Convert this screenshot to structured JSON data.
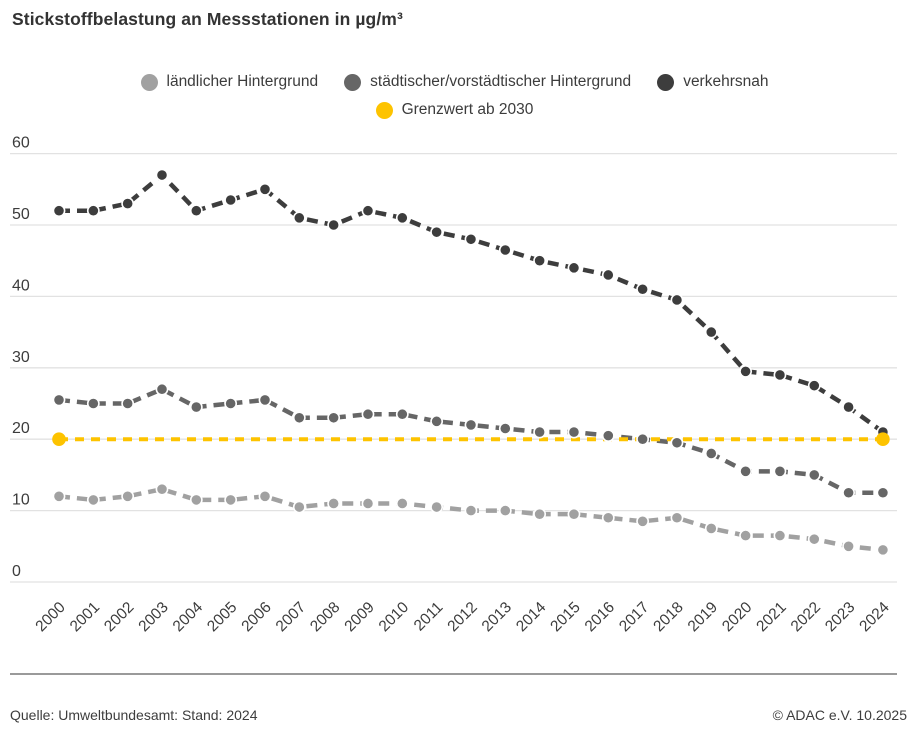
{
  "title": "Stickstoffbelastung an Messstationen in µg/m³",
  "legend": [
    {
      "label": "ländlicher Hintergrund",
      "color": "#a1a1a1"
    },
    {
      "label": "städtischer/vorstädtischer Hintergrund",
      "color": "#666666"
    },
    {
      "label": "verkehrsnah",
      "color": "#3d3d3d"
    },
    {
      "label": "Grenzwert ab 2030",
      "color": "#fdc300"
    }
  ],
  "chart_data": {
    "type": "line",
    "title": "Stickstoffbelastung an Messstationen in µg/m³",
    "categories": [
      "2000",
      "2001",
      "2002",
      "2003",
      "2004",
      "2005",
      "2006",
      "2007",
      "2008",
      "2009",
      "2010",
      "2011",
      "2012",
      "2013",
      "2014",
      "2015",
      "2016",
      "2017",
      "2018",
      "2019",
      "2020",
      "2021",
      "2022",
      "2023",
      "2024"
    ],
    "series": [
      {
        "name": "ländlicher Hintergrund",
        "color": "#a1a1a1",
        "values": [
          12,
          11.5,
          12,
          13,
          11.5,
          11.5,
          12,
          10.5,
          11,
          11,
          11,
          10.5,
          10,
          10,
          9.5,
          9.5,
          9,
          8.5,
          9,
          7.5,
          6.5,
          6.5,
          6,
          5,
          4.5
        ]
      },
      {
        "name": "städtischer/vorstädtischer Hintergrund",
        "color": "#666666",
        "values": [
          25.5,
          25,
          25,
          27,
          24.5,
          25,
          25.5,
          23,
          23,
          23.5,
          23.5,
          22.5,
          22,
          21.5,
          21,
          21,
          20.5,
          20,
          19.5,
          18,
          15.5,
          15.5,
          15,
          12.5,
          12.5
        ]
      },
      {
        "name": "verkehrsnah",
        "color": "#3d3d3d",
        "values": [
          52,
          52,
          53,
          57,
          52,
          53.5,
          55,
          51,
          50,
          52,
          51,
          49,
          48,
          46.5,
          45,
          44,
          43,
          41,
          39.5,
          35,
          29.5,
          29,
          27.5,
          24.5,
          21
        ]
      }
    ],
    "reference_line": {
      "name": "Grenzwert ab 2030",
      "value": 20,
      "color": "#fdc300",
      "style": "dashed"
    },
    "ylim": [
      0,
      60
    ],
    "yticks": [
      0,
      10,
      20,
      30,
      40,
      50,
      60
    ],
    "grid": true,
    "gridline_color": "#e2e2e2",
    "legend_position": "top"
  },
  "footer": {
    "source": "Quelle: Umweltbundesamt: Stand: 2024",
    "copyright": "© ADAC e.V. 10.2025"
  }
}
